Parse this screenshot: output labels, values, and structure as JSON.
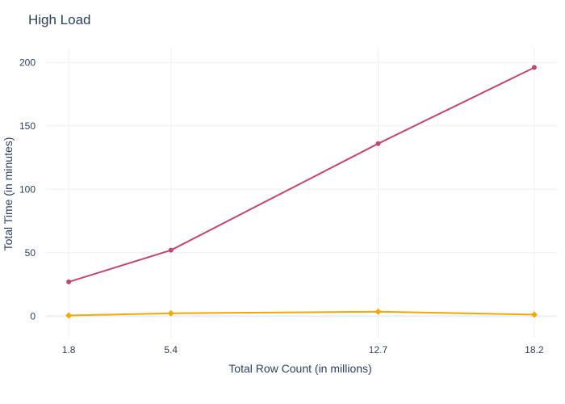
{
  "chart_data": {
    "type": "line",
    "title": "High Load",
    "xlabel": "Total Row Count (in millions)",
    "ylabel": "Total Time (in minutes)",
    "x": [
      1.8,
      5.4,
      12.7,
      18.2
    ],
    "x_tick_labels": [
      "1.8",
      "5.4",
      "12.7",
      "18.2"
    ],
    "xlim": [
      1.0,
      19.0
    ],
    "ylim": [
      -17,
      211
    ],
    "y_ticks": [
      0,
      50,
      100,
      150,
      200
    ],
    "grid": true,
    "legend": "none",
    "series": [
      {
        "values": [
          27,
          52,
          136,
          196
        ],
        "color": "#c7446f",
        "marker": "circle"
      },
      {
        "values": [
          0.5,
          2.3,
          3.5,
          1.2
        ],
        "color": "#f7a800",
        "marker": "diamond"
      }
    ]
  }
}
